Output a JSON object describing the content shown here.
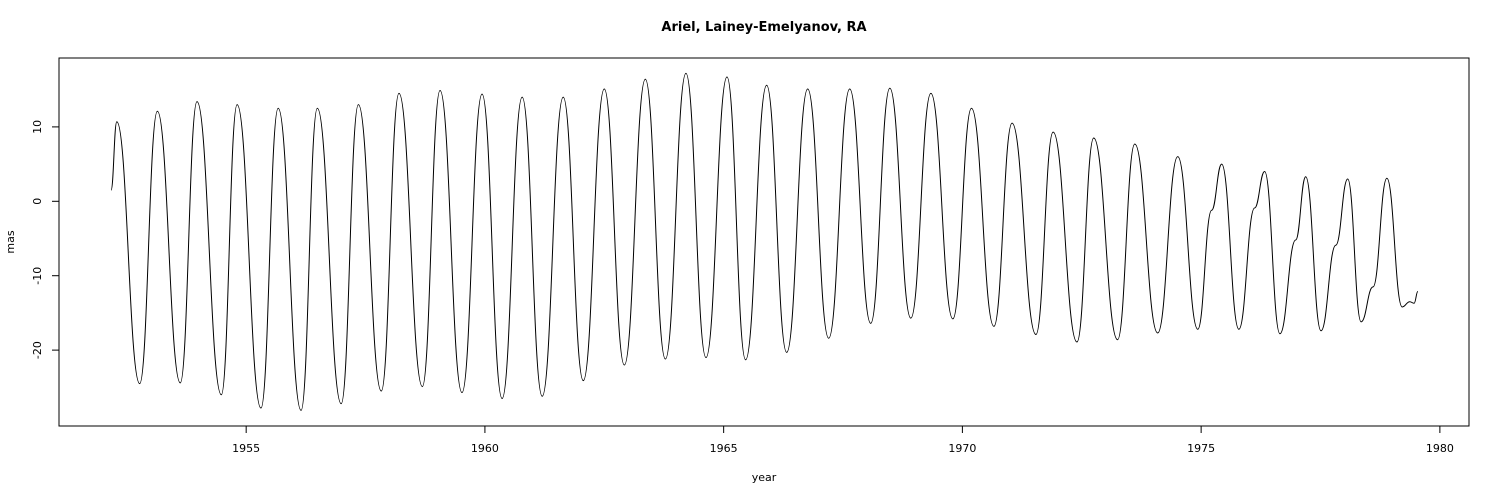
{
  "chart_data": {
    "type": "line",
    "title": "Ariel, Lainey-Emelyanov, RA",
    "x_label": "year",
    "y_label": "mas",
    "x": [
      1952.17,
      1952.29,
      1952.77,
      1953.14,
      1953.62,
      1953.97,
      1954.48,
      1954.81,
      1955.31,
      1955.67,
      1956.15,
      1956.49,
      1956.99,
      1957.35,
      1957.83,
      1958.2,
      1958.69,
      1959.06,
      1959.52,
      1959.94,
      1960.36,
      1960.78,
      1961.2,
      1961.64,
      1962.06,
      1962.5,
      1962.92,
      1963.36,
      1963.78,
      1964.21,
      1964.63,
      1965.07,
      1965.46,
      1965.9,
      1966.32,
      1966.76,
      1967.2,
      1967.64,
      1968.08,
      1968.48,
      1968.92,
      1969.34,
      1969.8,
      1970.19,
      1970.66,
      1971.04,
      1971.54,
      1971.9,
      1972.4,
      1972.75,
      1973.25,
      1973.61,
      1974.09,
      1974.51,
      1974.93,
      1975.22,
      1975.43,
      1975.79,
      1976.12,
      1976.33,
      1976.65,
      1976.98,
      1977.19,
      1977.51,
      1977.82,
      1978.07,
      1978.35,
      1978.6,
      1978.89,
      1979.21,
      1979.37,
      1979.46,
      1979.54
    ],
    "series": [
      {
        "color": "#000000",
        "values": [
          1.5,
          10.7,
          -24.5,
          12.1,
          -24.4,
          13.4,
          -26,
          13.0,
          -27.8,
          12.5,
          -28.1,
          12.5,
          -27.2,
          13.0,
          -25.5,
          14.5,
          -24.9,
          14.9,
          -25.7,
          14.4,
          -26.5,
          14.0,
          -26.2,
          14.0,
          -24.1,
          15.1,
          -22.0,
          16.4,
          -21.2,
          17.2,
          -21.0,
          16.7,
          -21.3,
          15.6,
          -20.3,
          15.1,
          -18.4,
          15.1,
          -16.4,
          15.2,
          -15.7,
          14.5,
          -15.8,
          12.5,
          -16.8,
          10.5,
          -17.9,
          9.3,
          -18.9,
          8.5,
          -18.6,
          7.7,
          -17.7,
          6.0,
          -17.2,
          -1.2,
          5.0,
          -17.2,
          -0.9,
          4.0,
          -17.8,
          -5.2,
          3.3,
          -17.4,
          -5.9,
          3.0,
          -16.2,
          -11.5,
          3.1,
          -14.2,
          -13.5,
          -13.7,
          -12.1
        ]
      }
    ],
    "xlim": [
      1951.08,
      1980.61
    ],
    "ylim": [
      -30.2,
      19.26
    ],
    "xticks": [
      1955,
      1960,
      1965,
      1970,
      1975,
      1980
    ],
    "yticks": [
      -20,
      -10,
      0,
      10
    ]
  }
}
